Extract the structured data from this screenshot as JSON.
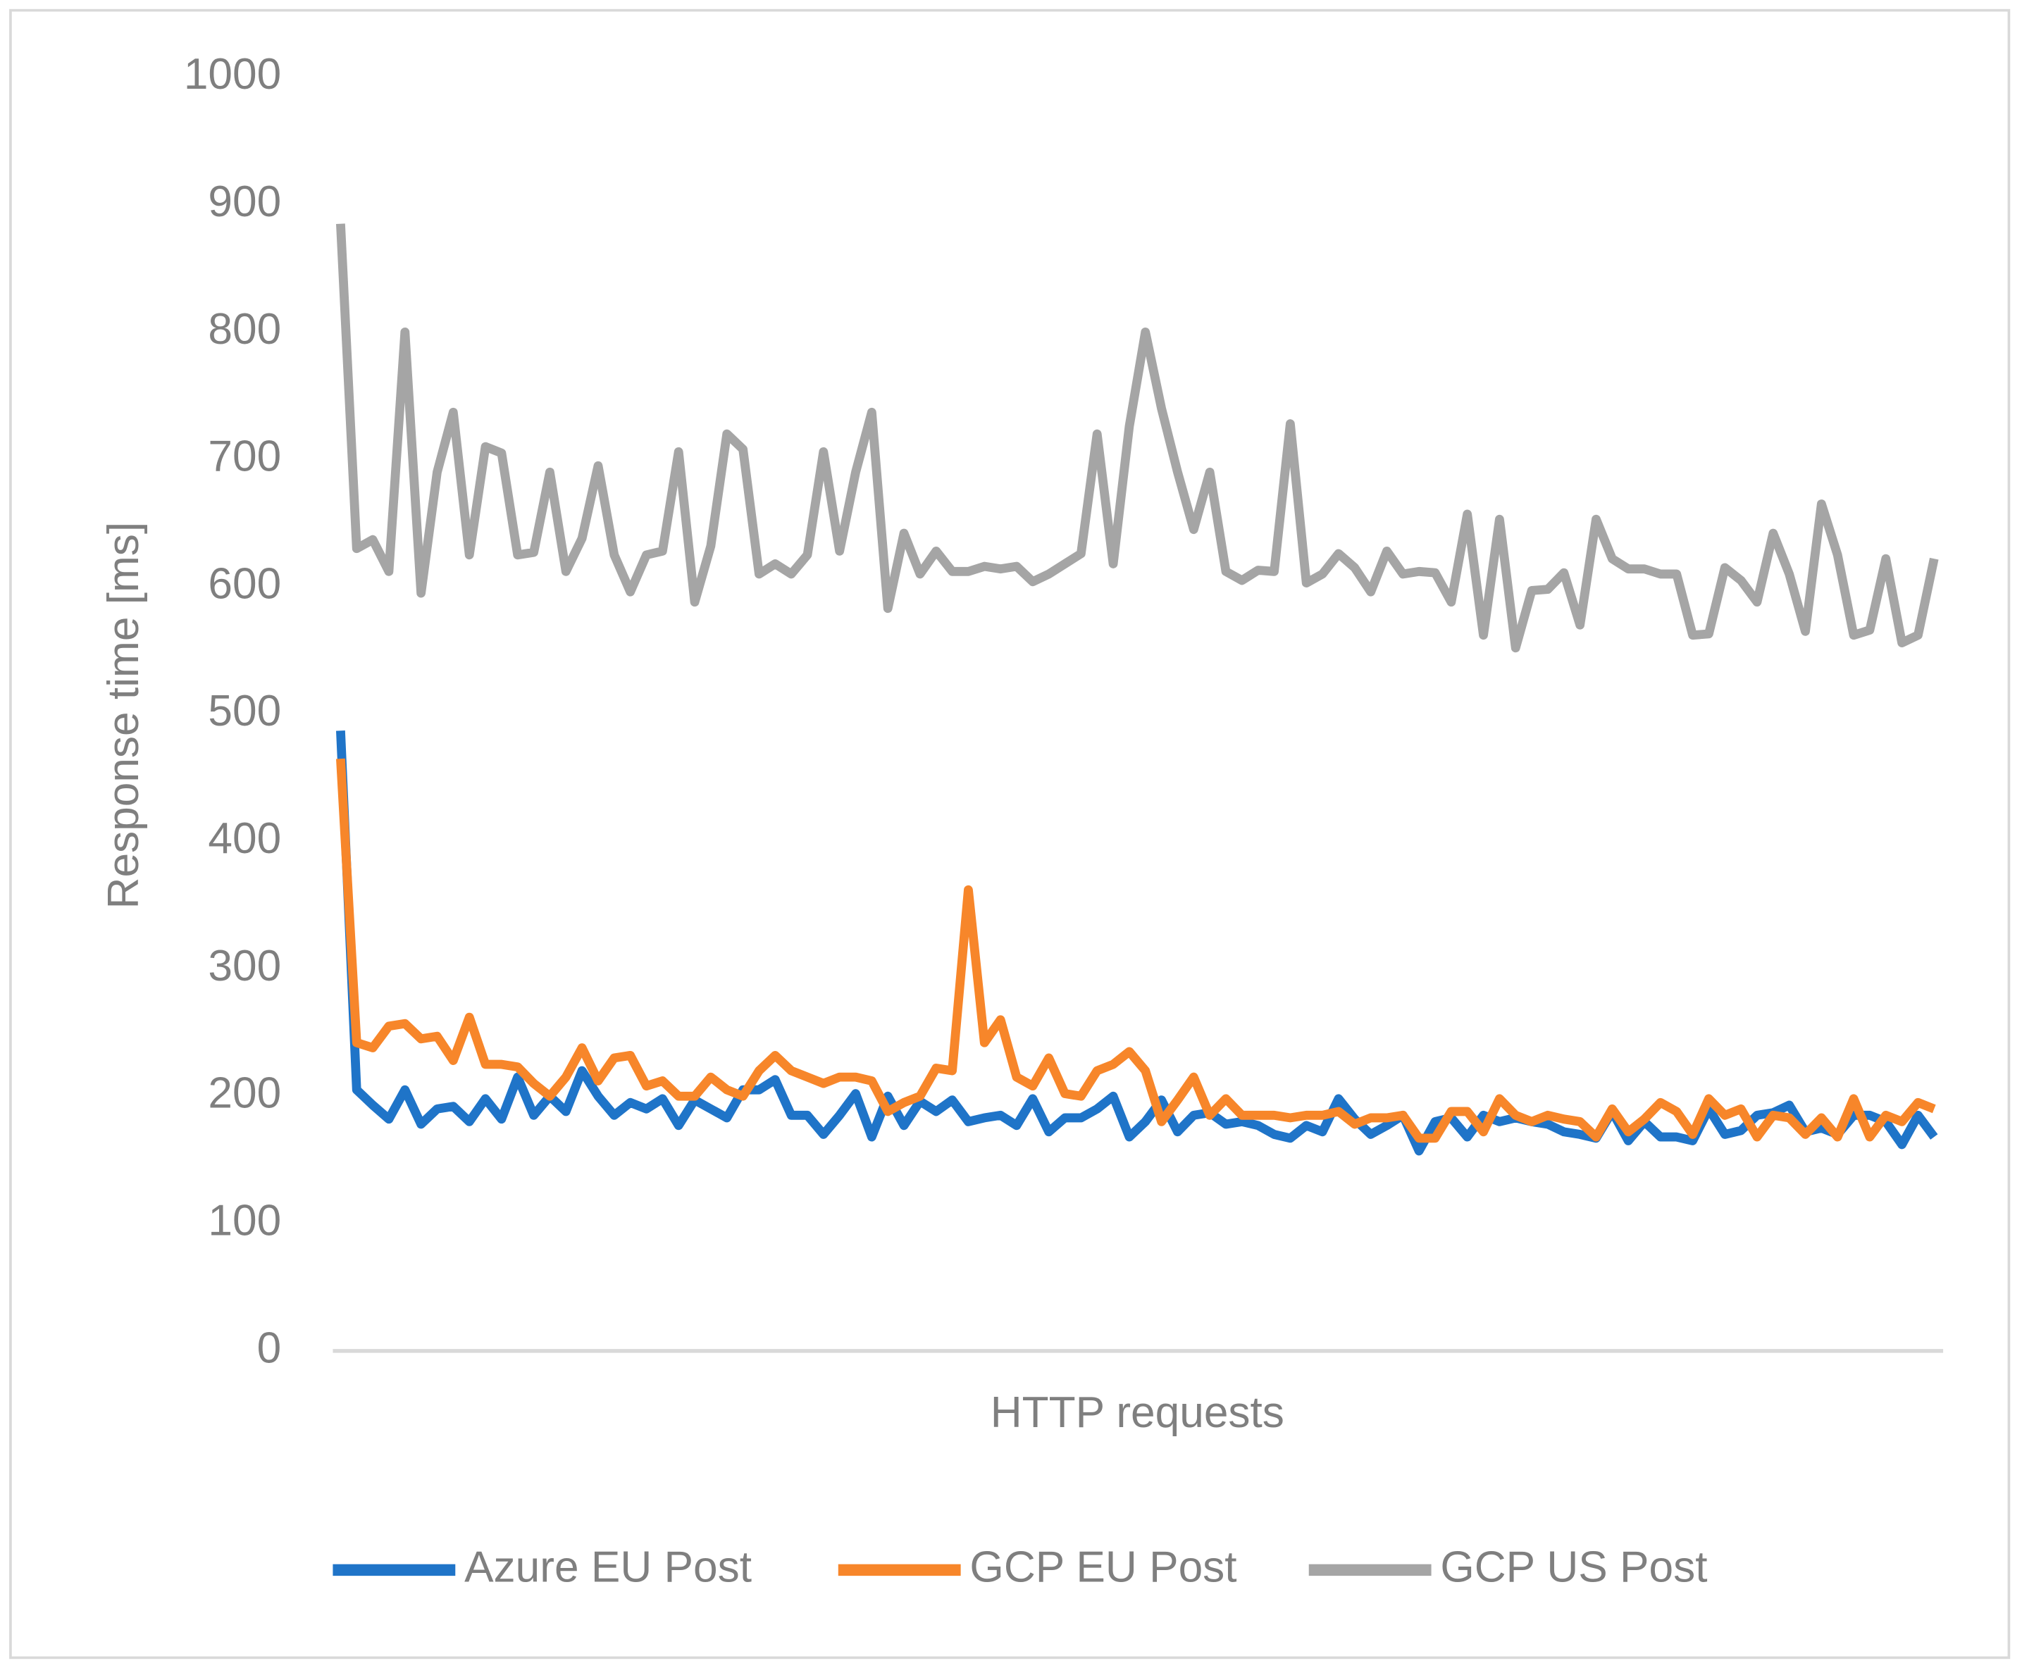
{
  "chart_data": {
    "type": "line",
    "ylabel": "Response time [ms]",
    "xlabel": "HTTP requests",
    "categories": [
      null,
      null,
      null,
      null,
      null,
      null,
      null,
      null,
      null,
      null,
      null,
      null,
      null,
      null,
      null,
      null,
      null,
      null,
      null,
      null,
      null,
      null,
      null,
      null,
      null,
      null,
      null,
      null,
      null,
      null,
      null,
      null,
      null,
      null,
      null,
      null,
      null,
      null,
      null,
      null,
      null,
      null,
      null,
      null,
      null,
      null,
      null,
      null,
      null,
      null,
      null,
      null,
      null,
      null,
      null,
      null,
      null,
      null,
      null,
      null,
      null,
      null,
      null,
      null,
      null,
      null,
      null,
      null,
      null,
      null,
      null,
      null,
      null,
      null,
      null,
      null,
      null,
      null,
      null,
      null,
      null,
      null,
      null,
      null,
      null,
      null,
      null,
      null,
      null,
      null,
      null,
      null,
      null,
      null,
      null,
      null,
      null,
      null,
      null,
      null
    ],
    "ylim": [
      0,
      1000
    ],
    "yticks": [
      0,
      100,
      200,
      300,
      400,
      500,
      600,
      700,
      800,
      900,
      1000
    ],
    "grid": false,
    "legend": "bottom",
    "series": [
      {
        "name": "Azure EU Post",
        "color": "#1f74c8",
        "values": [
          487,
          205,
          193,
          182,
          205,
          178,
          190,
          192,
          180,
          198,
          182,
          215,
          185,
          200,
          188,
          220,
          200,
          185,
          195,
          190,
          198,
          177,
          197,
          190,
          183,
          205,
          205,
          213,
          185,
          185,
          170,
          185,
          202,
          168,
          200,
          177,
          196,
          188,
          197,
          180,
          183,
          185,
          177,
          198,
          172,
          183,
          183,
          190,
          200,
          168,
          180,
          197,
          172,
          185,
          187,
          178,
          180,
          177,
          170,
          167,
          177,
          172,
          198,
          182,
          170,
          177,
          185,
          157,
          180,
          183,
          168,
          185,
          180,
          183,
          180,
          178,
          172,
          170,
          167,
          188,
          165,
          180,
          168,
          168,
          165,
          190,
          170,
          173,
          185,
          187,
          193,
          172,
          175,
          170,
          185,
          185,
          180,
          162,
          185,
          168
        ]
      },
      {
        "name": "GCP EU Post",
        "color": "#f7862a",
        "values": [
          465,
          242,
          238,
          255,
          257,
          245,
          247,
          228,
          262,
          225,
          225,
          223,
          210,
          200,
          215,
          238,
          212,
          230,
          232,
          208,
          212,
          200,
          200,
          215,
          205,
          200,
          220,
          232,
          220,
          215,
          210,
          215,
          215,
          212,
          188,
          195,
          200,
          222,
          220,
          362,
          242,
          260,
          215,
          208,
          230,
          202,
          200,
          220,
          225,
          235,
          220,
          180,
          197,
          215,
          185,
          198,
          185,
          185,
          185,
          183,
          185,
          185,
          188,
          178,
          183,
          183,
          185,
          167,
          167,
          188,
          188,
          172,
          198,
          185,
          180,
          185,
          182,
          180,
          168,
          190,
          172,
          182,
          195,
          188,
          170,
          198,
          185,
          190,
          168,
          185,
          183,
          170,
          183,
          168,
          198,
          168,
          185,
          180,
          195,
          190
        ]
      },
      {
        "name": "GCP US Post",
        "color": "#a5a5a5",
        "values": [
          885,
          630,
          637,
          612,
          800,
          595,
          690,
          737,
          625,
          710,
          705,
          625,
          627,
          690,
          612,
          638,
          695,
          625,
          596,
          625,
          628,
          706,
          588,
          632,
          720,
          708,
          610,
          618,
          610,
          625,
          706,
          628,
          690,
          737,
          583,
          642,
          610,
          628,
          612,
          612,
          616,
          614,
          616,
          604,
          610,
          618,
          626,
          720,
          618,
          726,
          800,
          740,
          690,
          645,
          690,
          612,
          605,
          613,
          612,
          728,
          603,
          610,
          626,
          615,
          596,
          628,
          610,
          612,
          611,
          588,
          657,
          562,
          653,
          552,
          597,
          598,
          611,
          570,
          653,
          622,
          614,
          614,
          610,
          610,
          562,
          563,
          615,
          605,
          588,
          642,
          610,
          565,
          665,
          625,
          562,
          566,
          622,
          556,
          562,
          622
        ]
      }
    ]
  }
}
